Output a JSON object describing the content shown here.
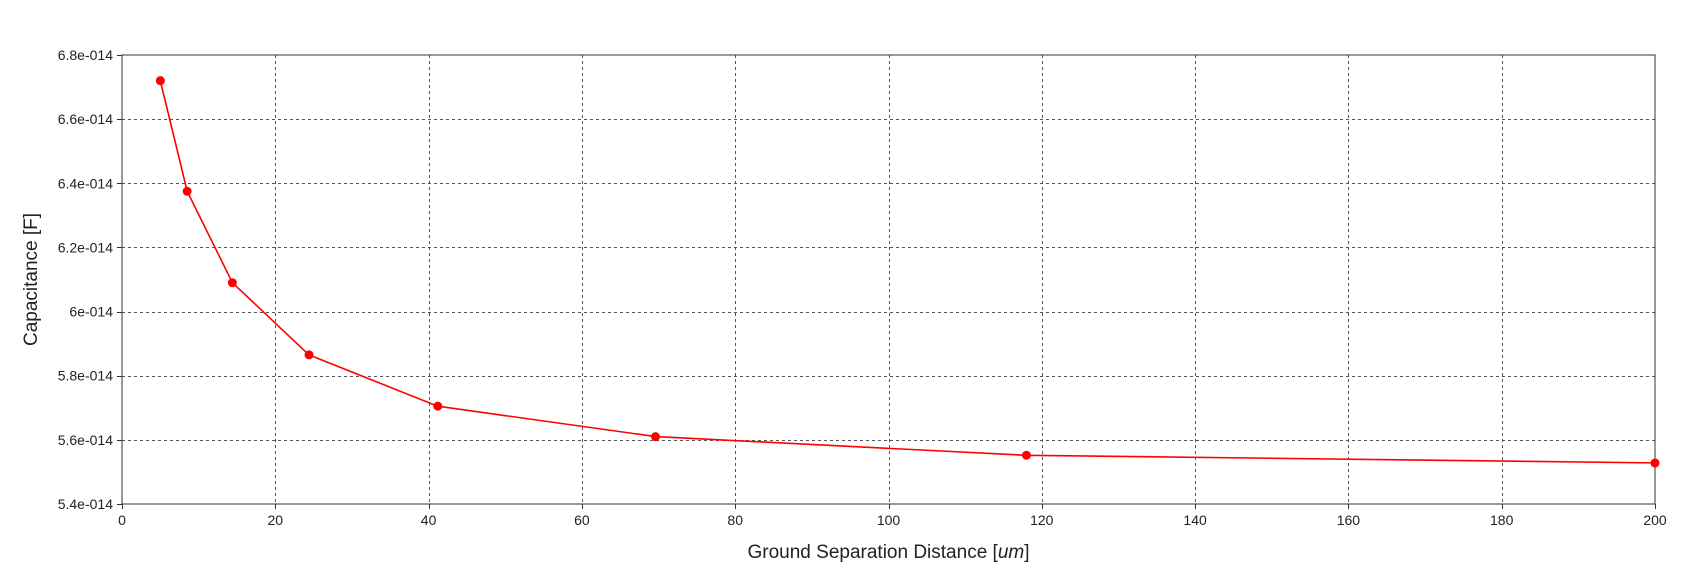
{
  "chart_data": {
    "type": "line",
    "title": "",
    "xlabel": "Ground Separation Distance [um]",
    "ylabel": "Capacitance [F]",
    "xlim": [
      0,
      200
    ],
    "ylim": [
      5.4e-14,
      6.8e-14
    ],
    "x_ticks": [
      0,
      20,
      40,
      60,
      80,
      100,
      120,
      140,
      160,
      180,
      200
    ],
    "y_ticks": [
      5.4e-14,
      5.6e-14,
      5.8e-14,
      6e-14,
      6.2e-14,
      6.4e-14,
      6.6e-14,
      6.8e-14
    ],
    "x_tick_labels": [
      "0",
      "20",
      "40",
      "60",
      "80",
      "100",
      "120",
      "140",
      "160",
      "180",
      "200"
    ],
    "y_tick_labels": [
      "5.4e-014",
      "5.6e-014",
      "5.8e-014",
      "6e-014",
      "6.2e-014",
      "6.4e-014",
      "6.6e-014",
      "6.8e-014"
    ],
    "grid": true,
    "legend": "none",
    "series": [
      {
        "color": "#ff0000",
        "x": [
          5,
          8.5,
          14.4,
          24.4,
          41.2,
          69.6,
          118,
          200
        ],
        "y": [
          6.72e-14,
          6.375e-14,
          6.09e-14,
          5.865e-14,
          5.705e-14,
          5.61e-14,
          5.552e-14,
          5.528e-14
        ]
      }
    ]
  },
  "colors": {
    "series": "#ff0000",
    "grid": "#555555",
    "axis": "#333333",
    "text": "#222222"
  }
}
